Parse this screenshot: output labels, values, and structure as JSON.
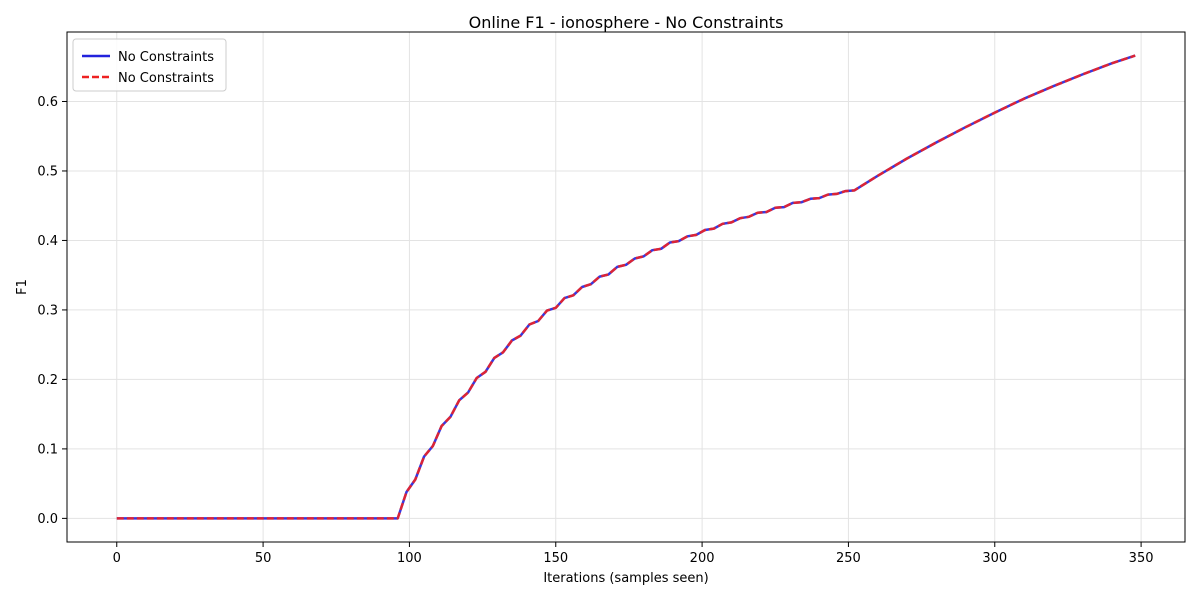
{
  "chart_data": {
    "type": "line",
    "title": "Online F1 - ionosphere - No Constraints",
    "xlabel": "Iterations (samples seen)",
    "ylabel": "F1",
    "xlim": [
      -17,
      365
    ],
    "ylim": [
      -0.034,
      0.7
    ],
    "x_ticks": [
      0,
      50,
      100,
      150,
      200,
      250,
      300,
      350
    ],
    "x_tick_labels": [
      "0",
      "50",
      "100",
      "150",
      "200",
      "250",
      "300",
      "350"
    ],
    "y_ticks": [
      0.0,
      0.1,
      0.2,
      0.3,
      0.4,
      0.5,
      0.6
    ],
    "y_tick_labels": [
      "0.0",
      "0.1",
      "0.2",
      "0.3",
      "0.4",
      "0.5",
      "0.6"
    ],
    "grid": true,
    "legend_position": "top-left",
    "x": [
      0,
      96,
      99,
      102,
      105,
      108,
      111,
      114,
      117,
      120,
      123,
      126,
      129,
      132,
      135,
      138,
      141,
      144,
      147,
      150,
      153,
      156,
      159,
      162,
      165,
      168,
      171,
      174,
      177,
      180,
      183,
      186,
      189,
      192,
      195,
      198,
      201,
      204,
      207,
      210,
      213,
      216,
      219,
      222,
      225,
      228,
      231,
      234,
      237,
      240,
      243,
      246,
      249,
      252,
      260,
      270,
      280,
      290,
      300,
      310,
      320,
      330,
      340,
      348
    ],
    "series": [
      {
        "name": "No Constraints",
        "color": "#2222dd",
        "style": "solid",
        "values": [
          0.0,
          0.0,
          0.038,
          0.056,
          0.089,
          0.104,
          0.133,
          0.146,
          0.17,
          0.181,
          0.202,
          0.211,
          0.231,
          0.239,
          0.256,
          0.263,
          0.279,
          0.284,
          0.299,
          0.303,
          0.317,
          0.321,
          0.333,
          0.337,
          0.348,
          0.351,
          0.362,
          0.365,
          0.374,
          0.377,
          0.386,
          0.388,
          0.397,
          0.399,
          0.406,
          0.408,
          0.415,
          0.417,
          0.424,
          0.426,
          0.432,
          0.434,
          0.44,
          0.441,
          0.447,
          0.448,
          0.454,
          0.455,
          0.46,
          0.461,
          0.466,
          0.467,
          0.471,
          0.472,
          0.493,
          0.518,
          0.541,
          0.563,
          0.584,
          0.604,
          0.622,
          0.639,
          0.655,
          0.666
        ]
      },
      {
        "name": "No Constraints",
        "color": "#ee2222",
        "style": "dashed",
        "values": [
          0.0,
          0.0,
          0.038,
          0.056,
          0.089,
          0.104,
          0.133,
          0.146,
          0.17,
          0.181,
          0.202,
          0.211,
          0.231,
          0.239,
          0.256,
          0.263,
          0.279,
          0.284,
          0.299,
          0.303,
          0.317,
          0.321,
          0.333,
          0.337,
          0.348,
          0.351,
          0.362,
          0.365,
          0.374,
          0.377,
          0.386,
          0.388,
          0.397,
          0.399,
          0.406,
          0.408,
          0.415,
          0.417,
          0.424,
          0.426,
          0.432,
          0.434,
          0.44,
          0.441,
          0.447,
          0.448,
          0.454,
          0.455,
          0.46,
          0.461,
          0.466,
          0.467,
          0.471,
          0.472,
          0.493,
          0.518,
          0.541,
          0.563,
          0.584,
          0.604,
          0.622,
          0.639,
          0.655,
          0.666
        ]
      }
    ]
  }
}
